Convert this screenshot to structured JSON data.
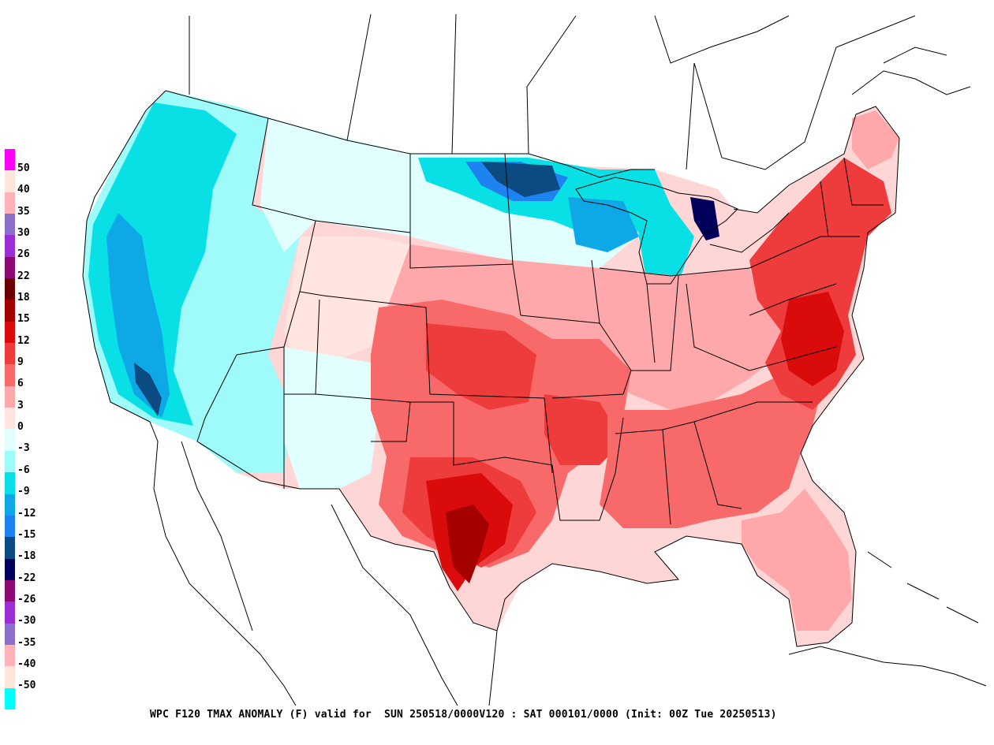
{
  "caption": "WPC F120 TMAX ANOMALY (F) valid for  SUN 250518/0000V120 : SAT 000101/0000 (Init: 00Z Tue 20250513)",
  "legend": [
    {
      "label": "50",
      "color": "#ff00ff"
    },
    {
      "label": "40",
      "color": "#ffe6dc"
    },
    {
      "label": "35",
      "color": "#ffb3b8"
    },
    {
      "label": "30",
      "color": "#8a6fc7"
    },
    {
      "label": "26",
      "color": "#9b2fd6"
    },
    {
      "label": "22",
      "color": "#8b0a74"
    },
    {
      "label": "18",
      "color": "#6b0000"
    },
    {
      "label": "15",
      "color": "#a50000"
    },
    {
      "label": "12",
      "color": "#d90b0b"
    },
    {
      "label": "9",
      "color": "#ee3b3b"
    },
    {
      "label": "6",
      "color": "#f86a6a"
    },
    {
      "label": "3",
      "color": "#ffa8ac"
    },
    {
      "label": "0",
      "color": "#ffe4e0"
    },
    {
      "label": "-3",
      "color": "#e2ffff"
    },
    {
      "label": "-6",
      "color": "#9ffafa"
    },
    {
      "label": "-9",
      "color": "#08e0e6"
    },
    {
      "label": "-12",
      "color": "#0fa8e6"
    },
    {
      "label": "-15",
      "color": "#1e82f0"
    },
    {
      "label": "-18",
      "color": "#0c4a82"
    },
    {
      "label": "-22",
      "color": "#00005a"
    },
    {
      "label": "-26",
      "color": "#8b0a74"
    },
    {
      "label": "-30",
      "color": "#9b2fd6"
    },
    {
      "label": "-35",
      "color": "#8a6fc7"
    },
    {
      "label": "-40",
      "color": "#ffb3b8"
    },
    {
      "label": "-50",
      "color": "#ffe6dc"
    },
    {
      "label": "",
      "color": "#00ffff"
    }
  ]
}
